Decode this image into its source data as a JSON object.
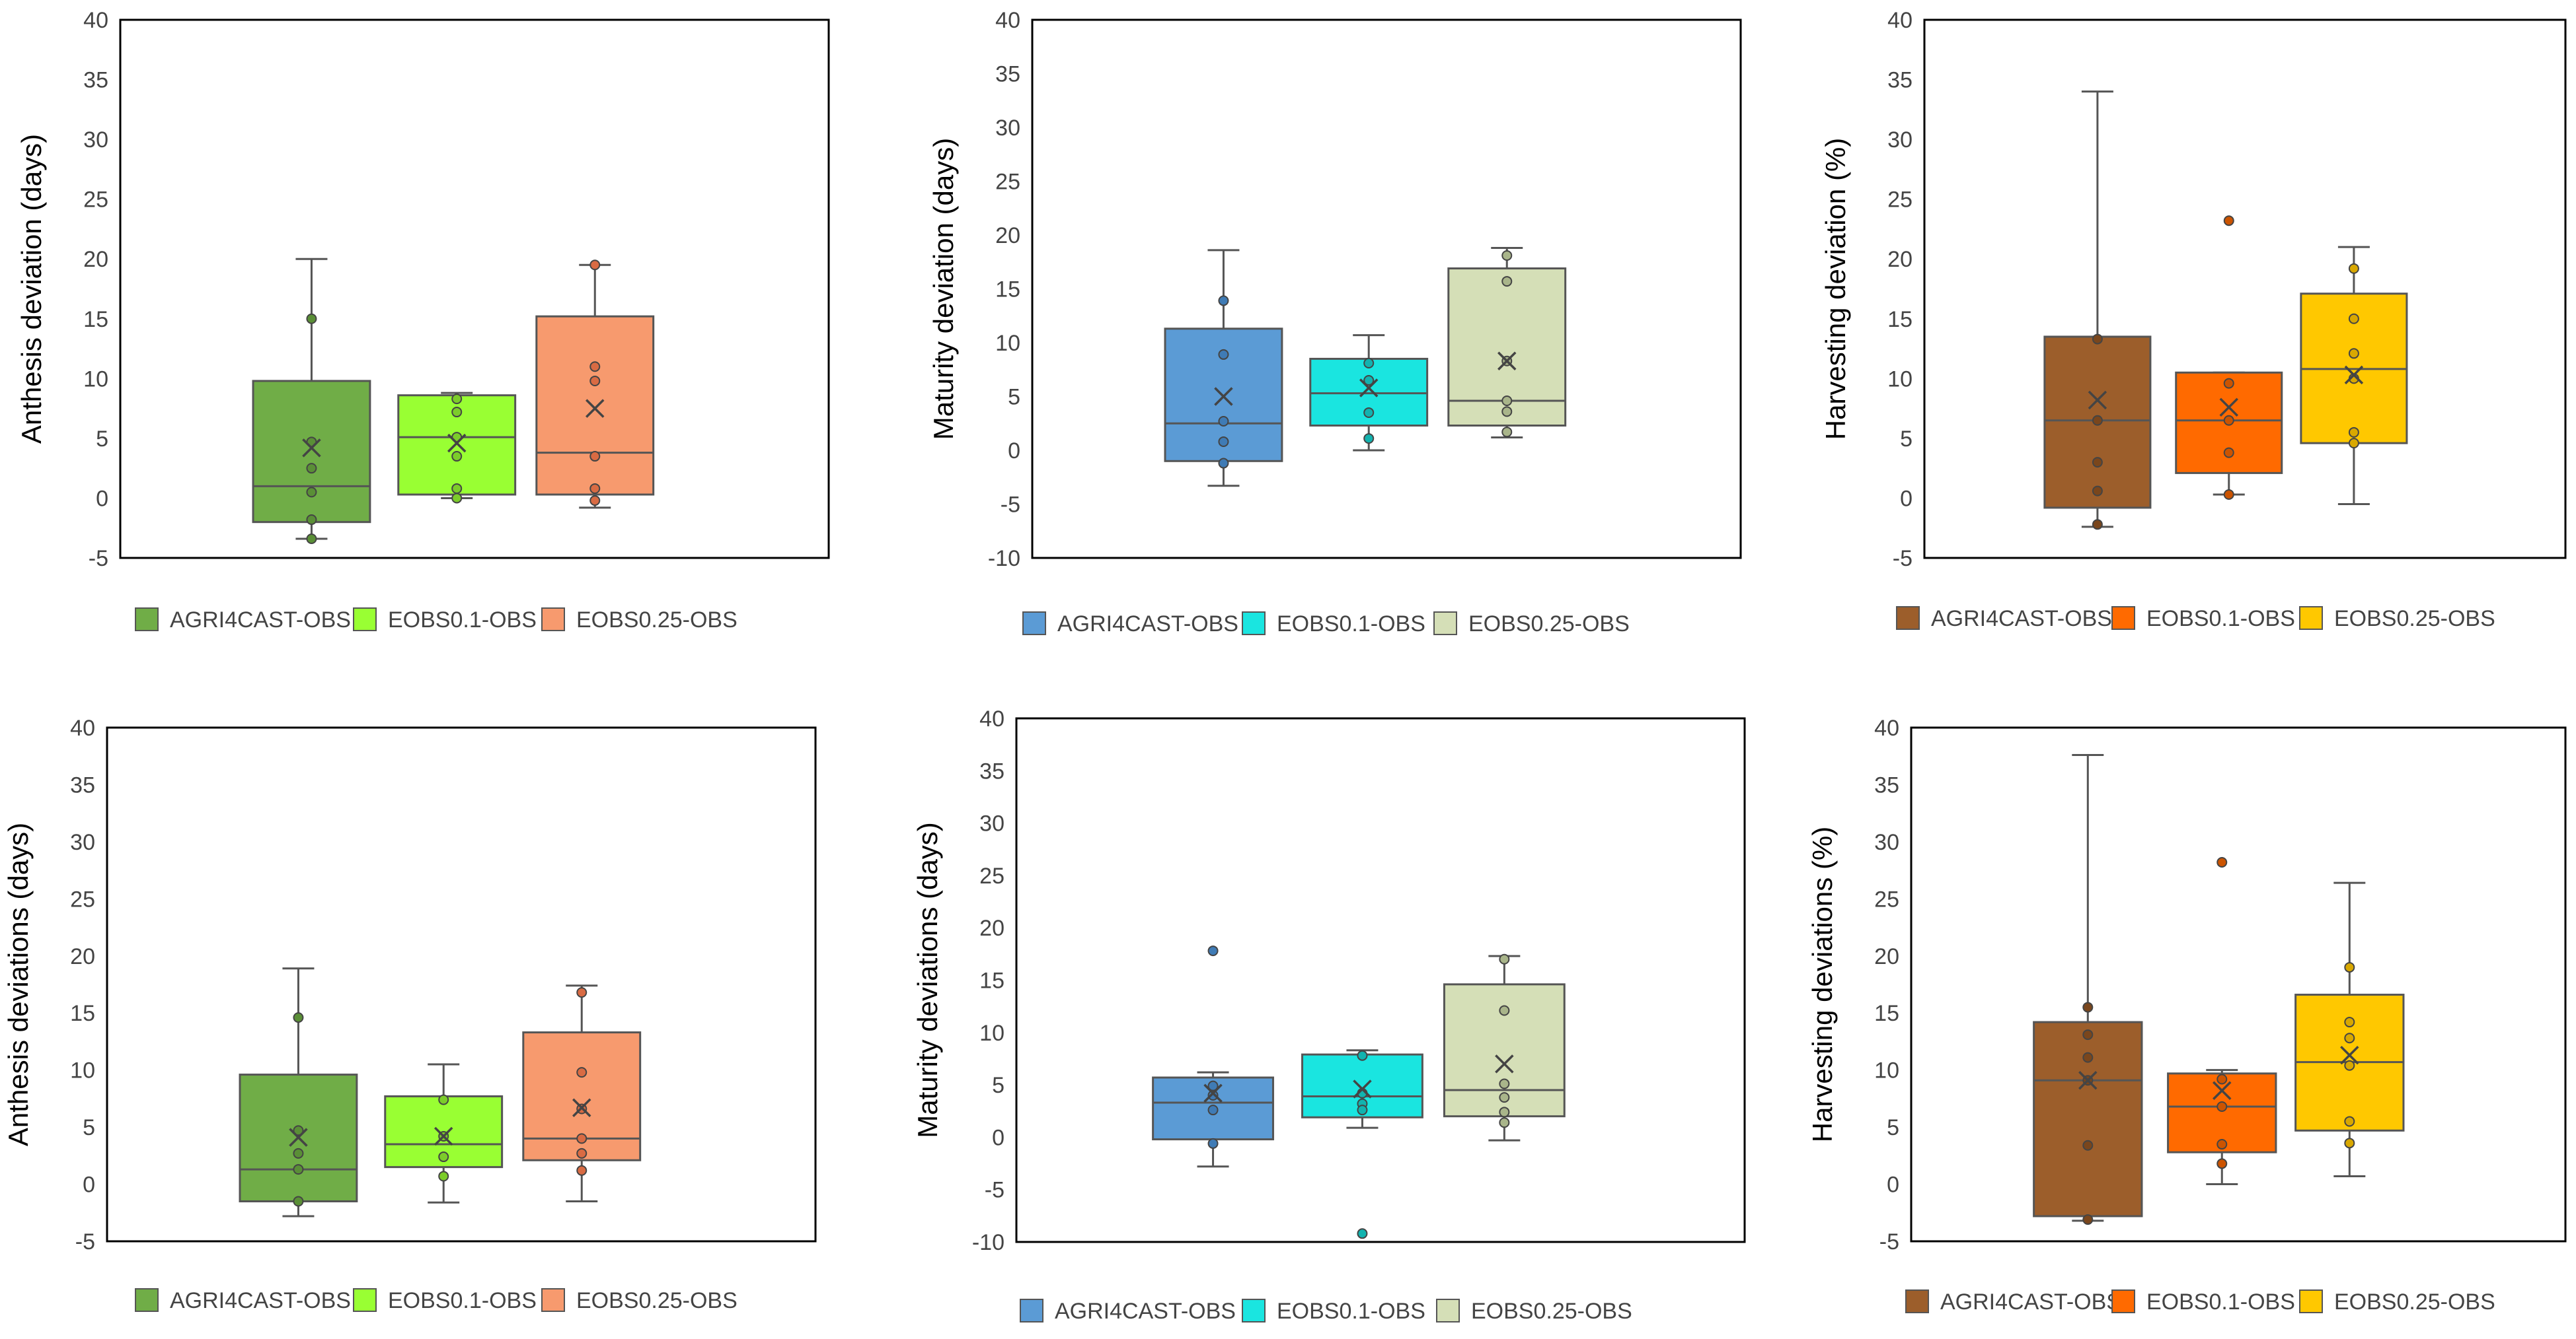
{
  "chart_data": [
    {
      "type": "box",
      "ylabel": "Anthesis deviation (days)",
      "ylim": [
        -5,
        40
      ],
      "yticks": [
        -5,
        0,
        5,
        10,
        15,
        20,
        25,
        30,
        35,
        40
      ],
      "series": [
        {
          "name": "AGRI4CAST-OBS",
          "color": "#70AD47",
          "dot": "#5a8f36",
          "whisker": [
            -3.4,
            20
          ],
          "q1": -2,
          "median": 1,
          "q3": 9.8,
          "mean": 4.2,
          "points": [
            15,
            4.7,
            2.5,
            0.5,
            -1.8,
            -3.4
          ]
        },
        {
          "name": "EOBS0.1-OBS",
          "color": "#99FF33",
          "dot": "#7ccc2a",
          "whisker": [
            0,
            8.8
          ],
          "q1": 0.3,
          "median": 5.1,
          "q3": 8.6,
          "mean": 4.6,
          "points": [
            8.3,
            7.2,
            5.1,
            3.5,
            0.8,
            0
          ]
        },
        {
          "name": "EOBS0.25-OBS",
          "color": "#F79A6E",
          "dot": "#d96b43",
          "whisker": [
            -0.8,
            19.5
          ],
          "q1": 0.3,
          "median": 3.8,
          "q3": 15.2,
          "mean": 7.5,
          "points": [
            19.5,
            11,
            9.8,
            3.5,
            0.8,
            -0.2
          ]
        }
      ]
    },
    {
      "type": "box",
      "ylabel": "Maturity deviation (days)",
      "ylim": [
        -10,
        40
      ],
      "yticks": [
        -10,
        -5,
        0,
        5,
        10,
        15,
        20,
        25,
        30,
        35,
        40
      ],
      "series": [
        {
          "name": "AGRI4CAST-OBS",
          "color": "#5B9BD5",
          "dot": "#3f7bb5",
          "whisker": [
            -3.3,
            18.6
          ],
          "q1": -1,
          "median": 2.5,
          "q3": 11.3,
          "mean": 5,
          "points": [
            13.9,
            8.9,
            2.7,
            0.8,
            -1.2
          ]
        },
        {
          "name": "EOBS0.1-OBS",
          "color": "#1AE5E0",
          "dot": "#12b3af",
          "whisker": [
            0,
            10.7
          ],
          "q1": 2.3,
          "median": 5.3,
          "q3": 8.5,
          "mean": 5.8,
          "points": [
            8.1,
            6.5,
            3.5,
            1.1
          ]
        },
        {
          "name": "EOBS0.25-OBS",
          "color": "#D5DFB7",
          "dot": "#a9b58a",
          "whisker": [
            1.2,
            18.8
          ],
          "q1": 2.3,
          "median": 4.6,
          "q3": 16.9,
          "mean": 8.3,
          "points": [
            18.1,
            15.7,
            8.3,
            4.6,
            3.6,
            1.7
          ]
        }
      ]
    },
    {
      "type": "box",
      "ylabel": "Harvesting deviation (%)",
      "ylim": [
        -5,
        40
      ],
      "yticks": [
        -5,
        0,
        5,
        10,
        15,
        20,
        25,
        30,
        35,
        40
      ],
      "series": [
        {
          "name": "AGRI4CAST-OBS",
          "color": "#9C5E2B",
          "dot": "#7a461c",
          "whisker": [
            -2.4,
            34
          ],
          "q1": -0.8,
          "median": 6.5,
          "q3": 13.5,
          "mean": 8.2,
          "points": [
            13.3,
            6.5,
            3,
            0.6,
            -2.2
          ]
        },
        {
          "name": "EOBS0.1-OBS",
          "color": "#FF6A00",
          "dot": "#cc5400",
          "whisker": [
            0.3,
            10.5
          ],
          "q1": 2.1,
          "median": 6.5,
          "q3": 10.5,
          "mean": 7.6,
          "points": [
            23.2,
            9.6,
            6.5,
            3.8,
            0.3
          ]
        },
        {
          "name": "EOBS0.25-OBS",
          "color": "#FFC800",
          "dot": "#d9a800",
          "whisker": [
            -0.5,
            21
          ],
          "q1": 4.6,
          "median": 10.8,
          "q3": 17.1,
          "mean": 10.3,
          "points": [
            19.2,
            15,
            12.1,
            10,
            5.5,
            4.6
          ]
        }
      ]
    },
    {
      "type": "box",
      "ylabel": "Anthesis deviations (days)",
      "ylim": [
        -5,
        40
      ],
      "yticks": [
        -5,
        0,
        5,
        10,
        15,
        20,
        25,
        30,
        35,
        40
      ],
      "series": [
        {
          "name": "AGRI4CAST-OBS",
          "color": "#70AD47",
          "dot": "#5a8f36",
          "whisker": [
            -2.8,
            18.9
          ],
          "q1": -1.5,
          "median": 1.3,
          "q3": 9.6,
          "mean": 4.1,
          "points": [
            14.6,
            4.7,
            2.7,
            1.3,
            -1.5
          ]
        },
        {
          "name": "EOBS0.1-OBS",
          "color": "#99FF33",
          "dot": "#7ccc2a",
          "whisker": [
            -1.6,
            10.5
          ],
          "q1": 1.5,
          "median": 3.5,
          "q3": 7.7,
          "mean": 4.2,
          "points": [
            7.4,
            4.2,
            2.4,
            0.7
          ]
        },
        {
          "name": "EOBS0.25-OBS",
          "color": "#F79A6E",
          "dot": "#d96b43",
          "whisker": [
            -1.5,
            17.4
          ],
          "q1": 2.1,
          "median": 4,
          "q3": 13.3,
          "mean": 6.7,
          "points": [
            16.8,
            9.8,
            6.6,
            4,
            2.7,
            1.2
          ]
        }
      ]
    },
    {
      "type": "box",
      "ylabel": "Maturity deviations (days)",
      "ylim": [
        -10,
        40
      ],
      "yticks": [
        -10,
        -5,
        0,
        5,
        10,
        15,
        20,
        25,
        30,
        35,
        40
      ],
      "series": [
        {
          "name": "AGRI4CAST-OBS",
          "color": "#5B9BD5",
          "dot": "#3f7bb5",
          "whisker": [
            -2.8,
            6.2
          ],
          "q1": -0.2,
          "median": 3.3,
          "q3": 5.7,
          "mean": 4.2,
          "points": [
            17.8,
            4.9,
            4,
            2.6,
            -0.6
          ]
        },
        {
          "name": "EOBS0.1-OBS",
          "color": "#1AE5E0",
          "dot": "#12b3af",
          "whisker": [
            0.9,
            8.3
          ],
          "q1": 1.9,
          "median": 3.9,
          "q3": 7.9,
          "mean": 4.6,
          "points": [
            7.8,
            4.2,
            3.2,
            2.6,
            -9.2
          ]
        },
        {
          "name": "EOBS0.25-OBS",
          "color": "#D5DFB7",
          "dot": "#a9b58a",
          "whisker": [
            -0.3,
            17.3
          ],
          "q1": 2,
          "median": 4.5,
          "q3": 14.6,
          "mean": 7,
          "points": [
            17,
            12.1,
            5.1,
            3.8,
            2.4,
            1.4
          ]
        }
      ]
    },
    {
      "type": "box",
      "ylabel": "Harvesting deviations (%)",
      "ylim": [
        -5,
        40
      ],
      "yticks": [
        -5,
        0,
        5,
        10,
        15,
        20,
        25,
        30,
        35,
        40
      ],
      "series": [
        {
          "name": "AGRI4CAST-OBS",
          "color": "#9C5E2B",
          "dot": "#7a461c",
          "whisker": [
            -3.2,
            37.6
          ],
          "q1": -2.8,
          "median": 9.1,
          "q3": 14.2,
          "mean": 9.1,
          "points": [
            15.5,
            13.1,
            11.1,
            9.1,
            3.4,
            -3.1
          ]
        },
        {
          "name": "EOBS0.1-OBS",
          "color": "#FF6A00",
          "dot": "#cc5400",
          "whisker": [
            0,
            10
          ],
          "q1": 2.8,
          "median": 6.8,
          "q3": 9.7,
          "mean": 8.2,
          "points": [
            28.2,
            9.2,
            6.8,
            3.5,
            1.8
          ]
        },
        {
          "name": "EOBS0.25-OBS",
          "color": "#FFC800",
          "dot": "#d9a800",
          "whisker": [
            0.7,
            26.4
          ],
          "q1": 4.7,
          "median": 10.7,
          "q3": 16.6,
          "mean": 11.3,
          "points": [
            19,
            14.2,
            12.8,
            10.4,
            5.5,
            3.6
          ]
        }
      ]
    }
  ]
}
